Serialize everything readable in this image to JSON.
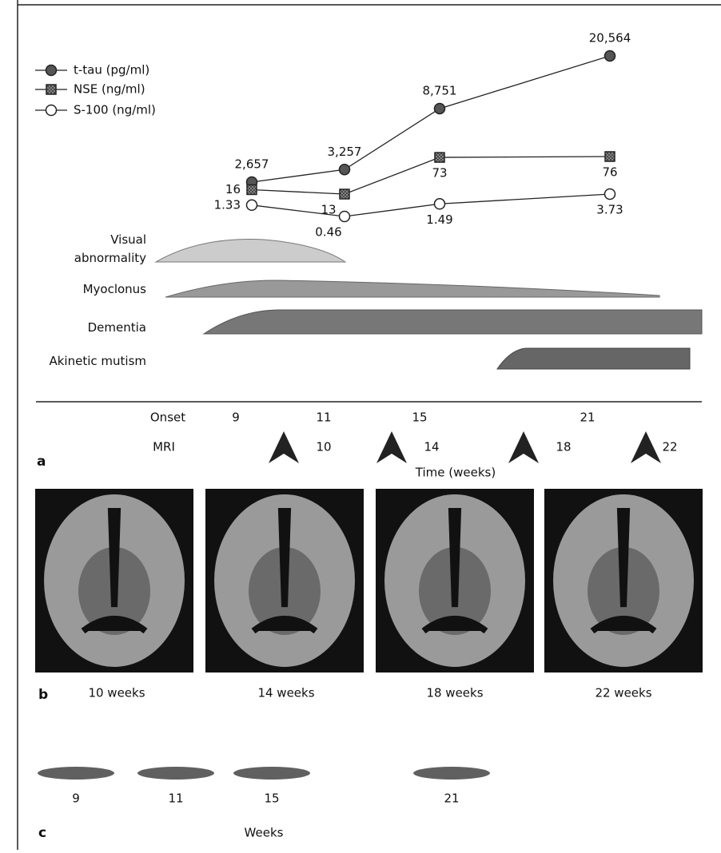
{
  "chart_data": {
    "type": "line",
    "categories": [
      "9",
      "11",
      "15",
      "21"
    ],
    "log_scale": true,
    "series": [
      {
        "name": "t-tau (pg/ml)",
        "color": "#555555",
        "marker": "filled-circle",
        "values": [
          2657,
          3257,
          8751,
          20564
        ],
        "value_labels": [
          "2,657",
          "3,257",
          "8,751",
          "20,564"
        ]
      },
      {
        "name": "NSE (ng/ml)",
        "color": "#777777",
        "marker": "hatched-square",
        "values": [
          16,
          13,
          73,
          76
        ]
      },
      {
        "name": "S-100 (ng/ml)",
        "color": "#ffffff",
        "marker": "open-circle",
        "values": [
          1.33,
          0.46,
          1.49,
          3.73
        ]
      }
    ],
    "symptoms": [
      "Visual abnormality",
      "Myoclonus",
      "Dementia",
      "Akinetic mutism"
    ],
    "onset_label": "Onset",
    "mri_label": "MRI",
    "mri_weeks": [
      "10",
      "14",
      "18",
      "22"
    ],
    "x_label": "Time (weeks)",
    "panel_label": "a"
  },
  "panel_b": {
    "panel_label": "b",
    "captions": [
      "10 weeks",
      "14 weeks",
      "18 weeks",
      "22 weeks"
    ]
  },
  "panel_c": {
    "panel_label": "c",
    "lanes": [
      "9",
      "11",
      "15",
      "21"
    ],
    "x_label": "Weeks"
  }
}
